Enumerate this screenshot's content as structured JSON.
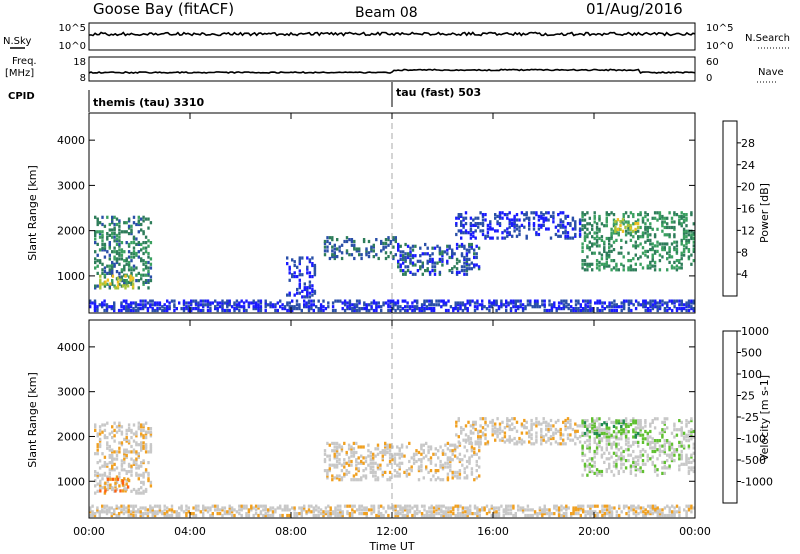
{
  "header": {
    "station": "Goose Bay (fitACF)",
    "beam": "Beam 08",
    "date": "01/Aug/2016"
  },
  "top_panels": {
    "nsky_label": "N.Sky",
    "nsky_ticks": [
      "10^5",
      "10^0"
    ],
    "nsearch_label": "N.Search",
    "nsearch_ticks": [
      "10^5",
      "10^0"
    ],
    "freq_label_line1": "Freq.",
    "freq_label_line2": "[MHz]",
    "freq_ticks": [
      "18",
      "8"
    ],
    "nave_label": "Nave",
    "nave_ticks": [
      "60",
      "0"
    ],
    "cpid_label": "CPID",
    "cpid_segments": [
      {
        "name": "themis (tau) 3310",
        "start_hour": 0
      },
      {
        "name": "tau (fast) 503",
        "start_hour": 12
      }
    ]
  },
  "colors": {
    "power_scale": [
      "#1a1aff",
      "#2a4fa8",
      "#2e7d5a",
      "#3aa060",
      "#a8c43a",
      "#f0c020",
      "#f08a10",
      "#e8501a",
      "#e01010"
    ],
    "velocity_scale": [
      "#ff0000",
      "#ff6010",
      "#f0a020",
      "#c8c8c8",
      "#c8c8c8",
      "#60c030",
      "#208a50",
      "#2050b0",
      "#1030d0"
    ]
  },
  "chart_data": [
    {
      "type": "heatmap",
      "title": "",
      "xlabel": "",
      "ylabel": "Slant Range [km]",
      "xlim": [
        0,
        24
      ],
      "ylim": [
        180,
        4600
      ],
      "y_ticks": [
        1000,
        2000,
        3000,
        4000
      ],
      "colorbar_label": "Power [dB]",
      "colorbar_ticks": [
        "4",
        "8",
        "12",
        "16",
        "20",
        "24",
        "28"
      ],
      "colorbar_range": [
        0,
        32
      ],
      "regions": [
        {
          "t0": 0.2,
          "t1": 2.5,
          "r0": 700,
          "r1": 2300,
          "v": 12
        },
        {
          "t0": 0.4,
          "t1": 1.8,
          "r0": 700,
          "r1": 1000,
          "v": 22
        },
        {
          "t0": 0.0,
          "t1": 24.0,
          "r0": 200,
          "r1": 450,
          "v": 6
        },
        {
          "t0": 9.3,
          "t1": 12.2,
          "r0": 1350,
          "r1": 1850,
          "v": 10
        },
        {
          "t0": 12.2,
          "t1": 15.5,
          "r0": 1000,
          "r1": 1700,
          "v": 8
        },
        {
          "t0": 19.5,
          "t1": 24.0,
          "r0": 1100,
          "r1": 2400,
          "v": 14
        },
        {
          "t0": 20.8,
          "t1": 21.8,
          "r0": 1950,
          "r1": 2250,
          "v": 22
        },
        {
          "t0": 14.5,
          "t1": 19.5,
          "r0": 1800,
          "r1": 2400,
          "v": 6
        },
        {
          "t0": 7.8,
          "t1": 9.0,
          "r0": 500,
          "r1": 1400,
          "v": 6
        }
      ]
    },
    {
      "type": "heatmap",
      "title": "",
      "xlabel": "Time UT",
      "ylabel": "Slant Range [km]",
      "xlim": [
        0,
        24
      ],
      "ylim": [
        180,
        4600
      ],
      "x_ticks": [
        "00:00",
        "04:00",
        "08:00",
        "12:00",
        "16:00",
        "20:00",
        "00:00"
      ],
      "y_ticks": [
        1000,
        2000,
        3000,
        4000
      ],
      "colorbar_label": "Velocity [m s-1]",
      "colorbar_ticks": [
        "-1000",
        "-500",
        "-100",
        "-25",
        "25",
        "100",
        "500",
        "1000"
      ],
      "regions": [
        {
          "t0": 0.2,
          "t1": 2.5,
          "r0": 700,
          "r1": 2300,
          "v": 3
        },
        {
          "t0": 0.4,
          "t1": 1.6,
          "r0": 750,
          "r1": 1050,
          "v": 2
        },
        {
          "t0": 0.0,
          "t1": 24.0,
          "r0": 200,
          "r1": 450,
          "v": 3
        },
        {
          "t0": 9.3,
          "t1": 15.5,
          "r0": 1000,
          "r1": 1850,
          "v": 3
        },
        {
          "t0": 19.5,
          "t1": 24.0,
          "r0": 1100,
          "r1": 2400,
          "v": 4
        },
        {
          "t0": 19.5,
          "t1": 21.8,
          "r0": 1950,
          "r1": 2350,
          "v": 5
        },
        {
          "t0": 14.5,
          "t1": 19.5,
          "r0": 1800,
          "r1": 2400,
          "v": 3
        }
      ]
    }
  ]
}
